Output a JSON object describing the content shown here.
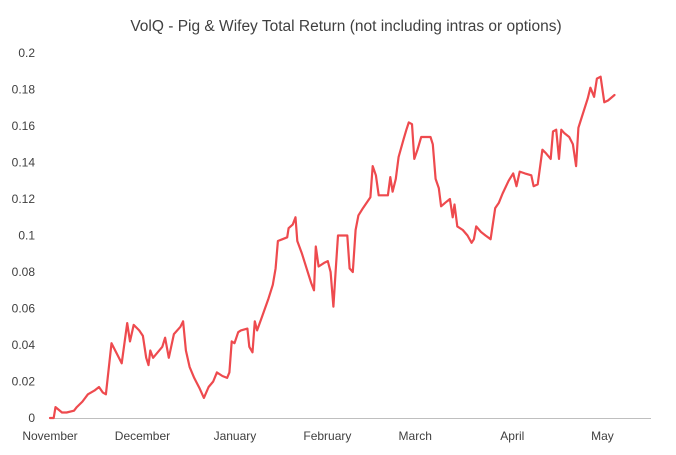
{
  "chart_data": {
    "type": "line",
    "title": "VolQ - Pig & Wifey Total Return (not including intras or options)",
    "xlabel": "",
    "ylabel": "",
    "ylim": [
      0,
      0.2
    ],
    "y_ticks": [
      "0",
      "0.02",
      "0.04",
      "0.06",
      "0.08",
      "0.1",
      "0.12",
      "0.14",
      "0.16",
      "0.18",
      "0.2"
    ],
    "x_ticks": [
      {
        "label": "November",
        "x": 0
      },
      {
        "label": "December",
        "x": 20
      },
      {
        "label": "January",
        "x": 40
      },
      {
        "label": "February",
        "x": 60
      },
      {
        "label": "March",
        "x": 79
      },
      {
        "label": "April",
        "x": 100
      },
      {
        "label": "May",
        "x": 119.5
      }
    ],
    "xlim": [
      0,
      130
    ],
    "grid": false,
    "legend": "none",
    "series_color": "#ee4a4e",
    "series": [
      {
        "points": [
          [
            0,
            0
          ],
          [
            0.8,
            0
          ],
          [
            1.2,
            0.006
          ],
          [
            2.6,
            0.003
          ],
          [
            3.6,
            0.003
          ],
          [
            5.2,
            0.004
          ],
          [
            5.8,
            0.006
          ],
          [
            7,
            0.009
          ],
          [
            8.2,
            0.013
          ],
          [
            9.6,
            0.015
          ],
          [
            10.6,
            0.017
          ],
          [
            11.4,
            0.014
          ],
          [
            12.1,
            0.013
          ],
          [
            13.3,
            0.041
          ],
          [
            14.3,
            0.036
          ],
          [
            15.5,
            0.03
          ],
          [
            16.7,
            0.052
          ],
          [
            17.3,
            0.042
          ],
          [
            18.1,
            0.051
          ],
          [
            19.3,
            0.048
          ],
          [
            20.1,
            0.045
          ],
          [
            20.8,
            0.033
          ],
          [
            21.3,
            0.029
          ],
          [
            21.7,
            0.037
          ],
          [
            22.3,
            0.033
          ],
          [
            23.3,
            0.036
          ],
          [
            24.3,
            0.039
          ],
          [
            24.9,
            0.044
          ],
          [
            25.7,
            0.033
          ],
          [
            26.8,
            0.046
          ],
          [
            28.2,
            0.05
          ],
          [
            28.8,
            0.053
          ],
          [
            29.4,
            0.037
          ],
          [
            30.2,
            0.028
          ],
          [
            31.2,
            0.022
          ],
          [
            32.4,
            0.016
          ],
          [
            33.3,
            0.011
          ],
          [
            34.3,
            0.017
          ],
          [
            35.3,
            0.02
          ],
          [
            36.1,
            0.025
          ],
          [
            37.3,
            0.023
          ],
          [
            38.3,
            0.022
          ],
          [
            38.8,
            0.025
          ],
          [
            39.3,
            0.042
          ],
          [
            39.9,
            0.041
          ],
          [
            40.7,
            0.047
          ],
          [
            41.3,
            0.048
          ],
          [
            42.7,
            0.049
          ],
          [
            43.1,
            0.039
          ],
          [
            43.8,
            0.036
          ],
          [
            44.3,
            0.053
          ],
          [
            44.8,
            0.048
          ],
          [
            45.8,
            0.055
          ],
          [
            47.2,
            0.065
          ],
          [
            48.2,
            0.073
          ],
          [
            48.8,
            0.082
          ],
          [
            49.3,
            0.097
          ],
          [
            50.3,
            0.098
          ],
          [
            51.3,
            0.099
          ],
          [
            51.6,
            0.104
          ],
          [
            52.5,
            0.106
          ],
          [
            53.1,
            0.11
          ],
          [
            53.5,
            0.097
          ],
          [
            54.5,
            0.09
          ],
          [
            55.5,
            0.082
          ],
          [
            56.5,
            0.074
          ],
          [
            57.1,
            0.07
          ],
          [
            57.5,
            0.094
          ],
          [
            58.1,
            0.083
          ],
          [
            59.3,
            0.085
          ],
          [
            60.1,
            0.086
          ],
          [
            60.7,
            0.08
          ],
          [
            61.3,
            0.061
          ],
          [
            61.8,
            0.081
          ],
          [
            62.3,
            0.1
          ],
          [
            63.3,
            0.1
          ],
          [
            64.3,
            0.1
          ],
          [
            64.8,
            0.082
          ],
          [
            65.5,
            0.08
          ],
          [
            66.1,
            0.103
          ],
          [
            66.7,
            0.111
          ],
          [
            67.7,
            0.115
          ],
          [
            69.3,
            0.121
          ],
          [
            69.8,
            0.138
          ],
          [
            70.5,
            0.133
          ],
          [
            71.1,
            0.122
          ],
          [
            71.9,
            0.122
          ],
          [
            73.1,
            0.122
          ],
          [
            73.6,
            0.132
          ],
          [
            74.1,
            0.124
          ],
          [
            74.8,
            0.131
          ],
          [
            75.4,
            0.143
          ],
          [
            76.5,
            0.153
          ],
          [
            77.1,
            0.158
          ],
          [
            77.6,
            0.162
          ],
          [
            78.3,
            0.161
          ],
          [
            78.8,
            0.142
          ],
          [
            79.5,
            0.147
          ],
          [
            80.3,
            0.154
          ],
          [
            81.3,
            0.154
          ],
          [
            82.3,
            0.154
          ],
          [
            82.8,
            0.15
          ],
          [
            83.4,
            0.131
          ],
          [
            84.1,
            0.126
          ],
          [
            84.6,
            0.116
          ],
          [
            85.5,
            0.118
          ],
          [
            86.5,
            0.12
          ],
          [
            87.1,
            0.11
          ],
          [
            87.5,
            0.117
          ],
          [
            88.1,
            0.105
          ],
          [
            89.3,
            0.103
          ],
          [
            90.3,
            0.1
          ],
          [
            91.2,
            0.096
          ],
          [
            91.7,
            0.098
          ],
          [
            92.2,
            0.105
          ],
          [
            93.2,
            0.102
          ],
          [
            94.2,
            0.1
          ],
          [
            95.3,
            0.098
          ],
          [
            96.3,
            0.115
          ],
          [
            97.1,
            0.118
          ],
          [
            97.9,
            0.123
          ],
          [
            99.2,
            0.13
          ],
          [
            100.2,
            0.134
          ],
          [
            100.9,
            0.127
          ],
          [
            101.6,
            0.135
          ],
          [
            102.7,
            0.134
          ],
          [
            104.1,
            0.133
          ],
          [
            104.6,
            0.127
          ],
          [
            105.5,
            0.128
          ],
          [
            106.5,
            0.147
          ],
          [
            107.3,
            0.145
          ],
          [
            108.3,
            0.142
          ],
          [
            108.8,
            0.157
          ],
          [
            109.5,
            0.158
          ],
          [
            110.1,
            0.142
          ],
          [
            110.6,
            0.158
          ],
          [
            111.3,
            0.156
          ],
          [
            112.3,
            0.154
          ],
          [
            113.1,
            0.15
          ],
          [
            113.8,
            0.138
          ],
          [
            114.3,
            0.159
          ],
          [
            114.8,
            0.163
          ],
          [
            116.3,
            0.175
          ],
          [
            116.9,
            0.181
          ],
          [
            117.7,
            0.176
          ],
          [
            118.3,
            0.186
          ],
          [
            119.1,
            0.187
          ],
          [
            119.9,
            0.173
          ],
          [
            120.7,
            0.174
          ],
          [
            122.1,
            0.177
          ]
        ]
      }
    ]
  }
}
